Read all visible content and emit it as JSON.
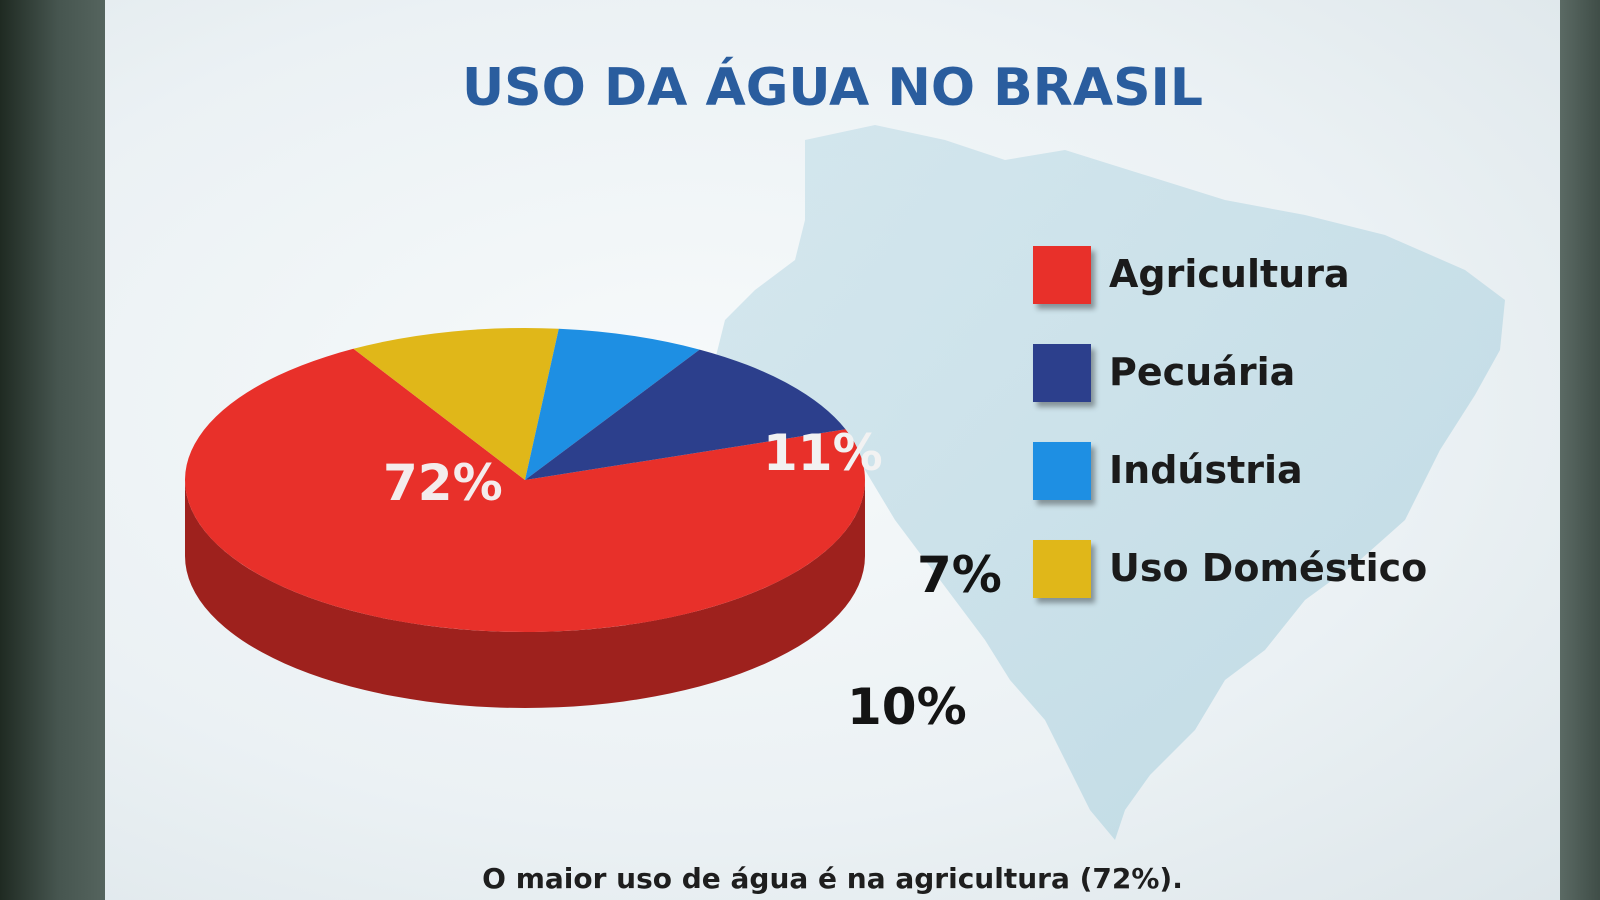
{
  "chart_data": {
    "type": "pie",
    "title": "USO DA ÁGUA NO BRASIL",
    "caption": "O maior uso de água é na agricultura (72%).",
    "legend_position": "right",
    "slices": [
      {
        "name": "Agricultura",
        "value": 72,
        "label": "72%",
        "color": "#e8302a"
      },
      {
        "name": "Pecuária",
        "value": 11,
        "label": "11%",
        "color": "#2c3f8c"
      },
      {
        "name": "Indústria",
        "value": 7,
        "label": "7%",
        "color": "#1e8fe3"
      },
      {
        "name": "Uso Doméstico",
        "value": 10,
        "label": "10%",
        "color": "#e0b719"
      }
    ]
  }
}
